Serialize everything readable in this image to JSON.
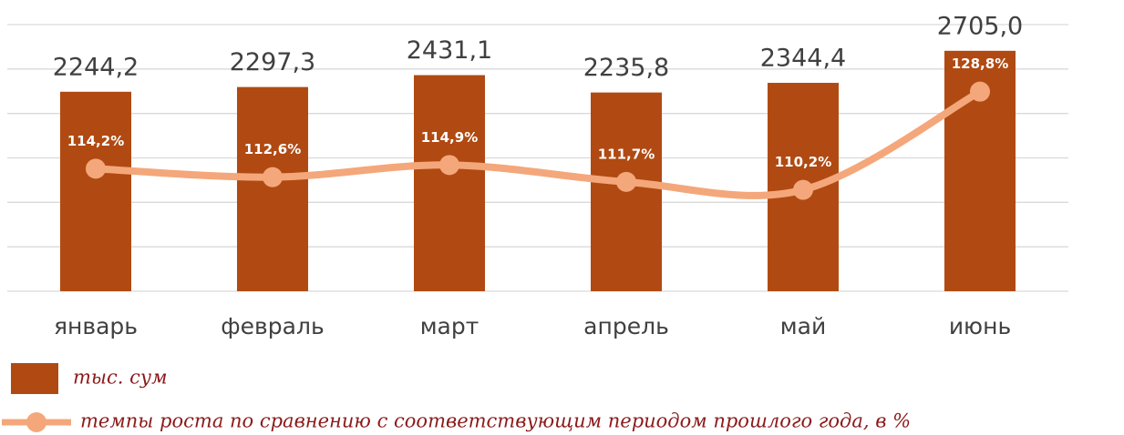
{
  "chart_data": {
    "type": "bar",
    "categories": [
      "январь",
      "февраль",
      "март",
      "апрель",
      "май",
      "июнь"
    ],
    "series": [
      {
        "name": "тыс. сум",
        "type": "bar",
        "color": "#b04a12",
        "values": [
          2244.2,
          2297.3,
          2431.1,
          2235.8,
          2344.4,
          2705.0
        ],
        "value_labels": [
          "2244,2",
          "2297,3",
          "2431,1",
          "2235,8",
          "2344,4",
          "2705,0"
        ]
      },
      {
        "name": "темпы роста по сравнению с соответствующим периодом прошлого года, в %",
        "type": "line",
        "axis": "y2",
        "color": "#f4a77a",
        "values": [
          114.2,
          112.6,
          114.9,
          111.7,
          110.2,
          128.8
        ],
        "value_labels": [
          "114,2%",
          "112,6%",
          "114,9%",
          "111,7%",
          "110,2%",
          "128,8%"
        ]
      }
    ],
    "ylim": [
      0,
      3000
    ],
    "yticks": [
      0,
      500,
      1000,
      1500,
      2000,
      2500,
      3000
    ],
    "y2lim": [
      91,
      141.5
    ],
    "grid": true,
    "legend": "bottom-left"
  }
}
